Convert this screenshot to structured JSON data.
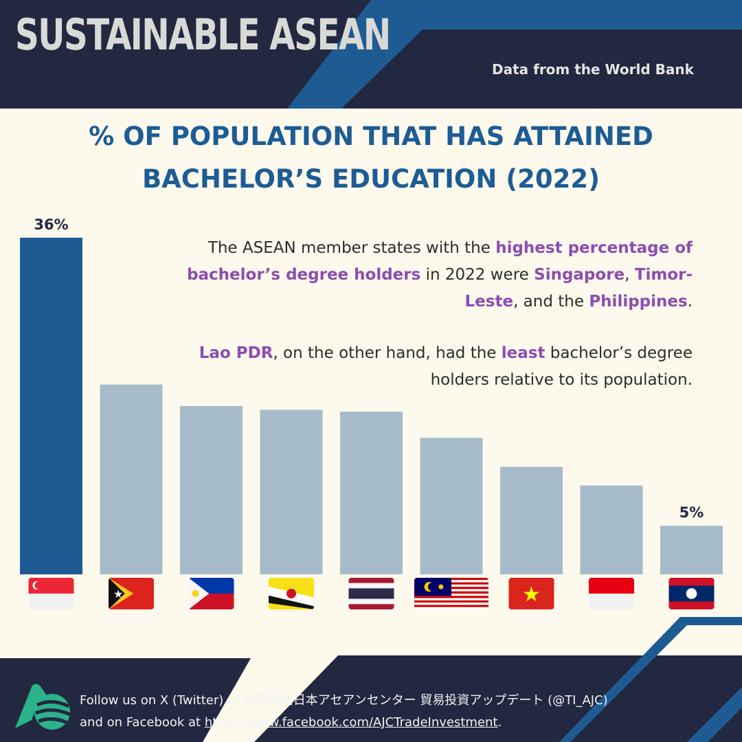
{
  "header": {
    "brand": "SUSTAINABLE ASEAN",
    "source": "Data from the World Bank"
  },
  "title": {
    "line1": "% OF POPULATION THAT HAS ATTAINED",
    "line2": "BACHELOR’S EDUCATION (2022)"
  },
  "annotation": {
    "p1": {
      "t1": "The ASEAN member states with the ",
      "h1": "highest percentage of bachelor’s degree holders",
      "t2": " in 2022 were ",
      "h2": "Singapore",
      "t3": ", ",
      "h3": "Timor-Leste",
      "t4": ", and the ",
      "h4": "Philippines",
      "t5": "."
    },
    "p2": {
      "h1": "Lao PDR",
      "t1": ", on the other hand, had the ",
      "h2": "least",
      "t2": " bachelor’s degree holders relative to its population."
    }
  },
  "colors": {
    "highlight_bar": "#1f5b93",
    "bar": "#a7bcca",
    "accent_text": "#8c4db1",
    "title": "#1d5c95",
    "navy": "#232841"
  },
  "chart_data": {
    "type": "bar",
    "categories": [
      "Singapore",
      "Timor-Leste",
      "Philippines",
      "Brunei",
      "Thailand",
      "Malaysia",
      "Vietnam",
      "Indonesia",
      "Lao PDR"
    ],
    "flag_icons": [
      "singapore-flag-icon",
      "timor-leste-flag-icon",
      "philippines-flag-icon",
      "brunei-flag-icon",
      "thailand-flag-icon",
      "malaysia-flag-icon",
      "vietnam-flag-icon",
      "indonesia-flag-icon",
      "laos-flag-icon"
    ],
    "values": [
      36,
      20.3,
      18,
      17.6,
      17.4,
      14.6,
      11.5,
      9.5,
      5.2
    ],
    "data_labels": [
      "36%",
      "",
      "",
      "",
      "",
      "",
      "",
      "",
      "5%"
    ],
    "highlight_index": 0,
    "ylim": [
      0,
      36
    ],
    "xlabel": "",
    "ylabel": "",
    "grid": false
  },
  "footer": {
    "line1": "Follow us on X (Twitter) at 国際機関日本アセアンセンター 貿易投資アップデート (@TI_AJC)",
    "line2_prefix": "and on Facebook at ",
    "link": "https://www.facebook.com/AJCTradeInvestment",
    "line2_suffix": "."
  }
}
